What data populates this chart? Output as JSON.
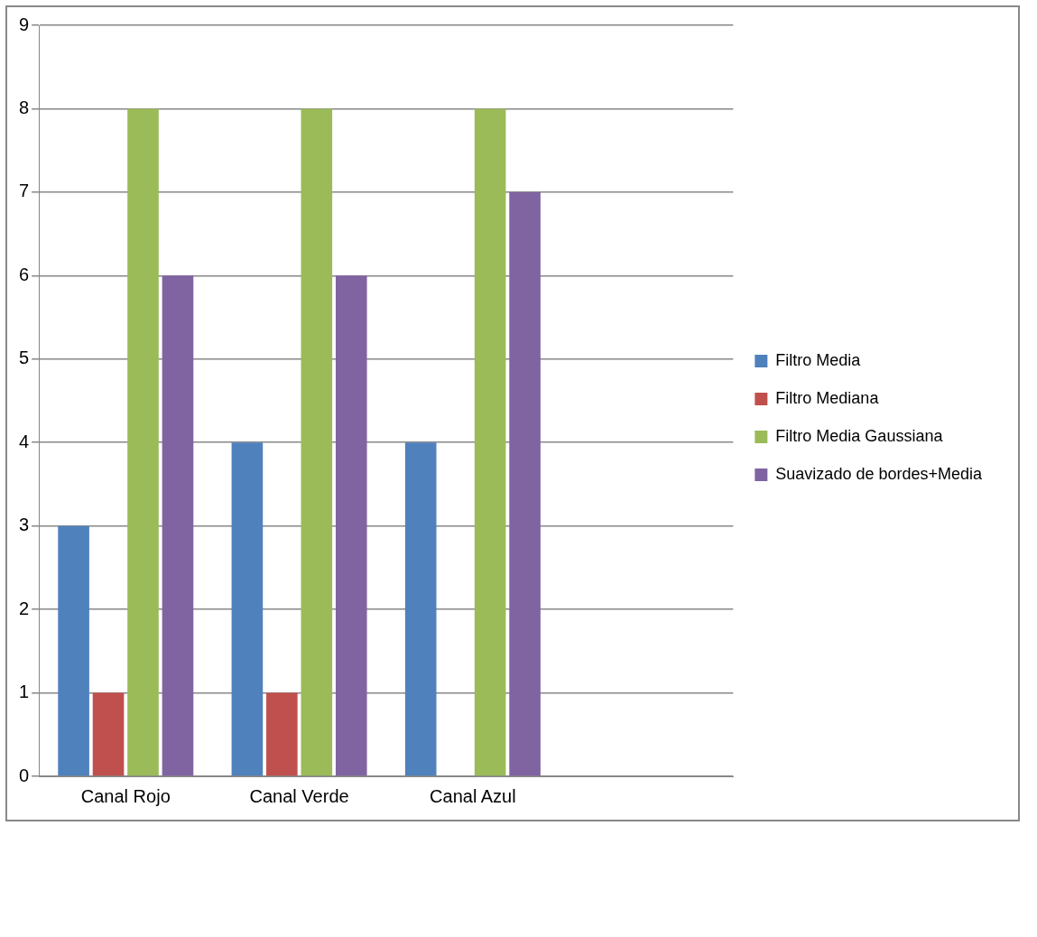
{
  "chart_data": {
    "type": "bar",
    "categories": [
      "Canal Rojo",
      "Canal Verde",
      "Canal Azul",
      null
    ],
    "series": [
      {
        "name": "Filtro Media",
        "color": "#4f81bd",
        "values": [
          3,
          4,
          4,
          null
        ]
      },
      {
        "name": "Filtro Mediana",
        "color": "#c0504d",
        "values": [
          1,
          1,
          0,
          null
        ]
      },
      {
        "name": "Filtro Media Gaussiana",
        "color": "#9bbb59",
        "values": [
          8,
          8,
          8,
          null
        ]
      },
      {
        "name": "Suavizado de bordes+Media",
        "color": "#8064a2",
        "values": [
          6,
          6,
          7,
          null
        ]
      }
    ],
    "ylim": [
      0,
      9
    ],
    "yticks": [
      0,
      1,
      2,
      3,
      4,
      5,
      6,
      7,
      8,
      9
    ],
    "grid": "y",
    "legend": "right"
  }
}
